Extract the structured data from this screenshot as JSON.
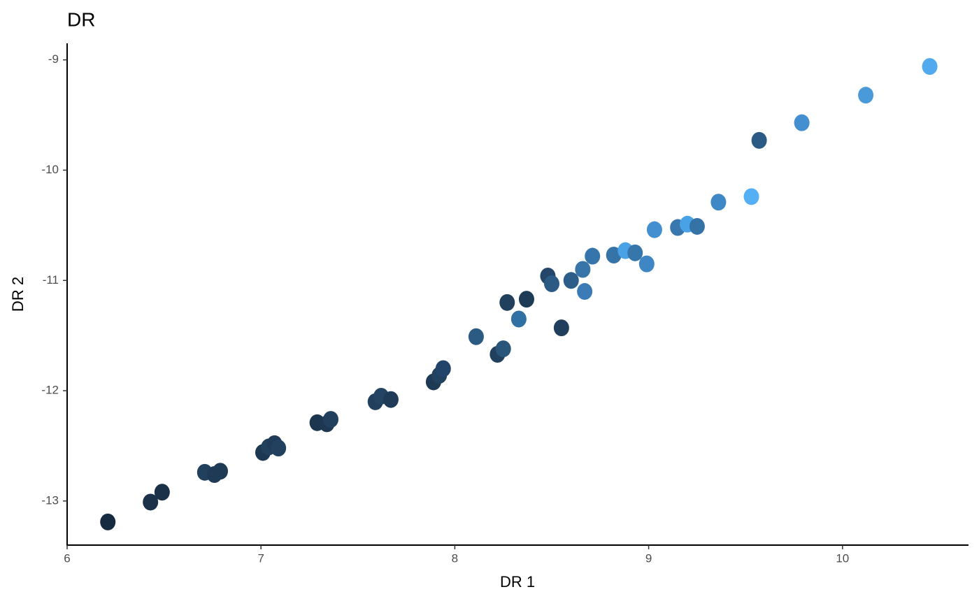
{
  "chart_data": {
    "type": "scatter",
    "title": "DR",
    "x_label": "DR 1",
    "y_label": "DR 2",
    "x": [
      6.21,
      6.43,
      6.49,
      6.71,
      6.76,
      6.79,
      7.01,
      7.04,
      7.07,
      7.09,
      7.29,
      7.34,
      7.36,
      7.59,
      7.62,
      7.67,
      7.89,
      7.92,
      7.94,
      8.11,
      8.22,
      8.25,
      8.27,
      8.33,
      8.37,
      8.48,
      8.5,
      8.55,
      8.6,
      8.66,
      8.67,
      8.71,
      8.82,
      8.88,
      8.93,
      8.99,
      9.03,
      9.15,
      9.2,
      9.25,
      9.36,
      9.53,
      9.57,
      9.79,
      10.12,
      10.45
    ],
    "values": [
      -13.19,
      -13.01,
      -12.92,
      -12.74,
      -12.76,
      -12.73,
      -12.56,
      -12.51,
      -12.48,
      -12.52,
      -12.29,
      -12.3,
      -12.26,
      -12.1,
      -12.05,
      -12.08,
      -11.92,
      -11.86,
      -11.8,
      -11.51,
      -11.67,
      -11.62,
      -11.2,
      -11.35,
      -11.17,
      -10.96,
      -11.03,
      -11.43,
      -11.0,
      -10.9,
      -11.1,
      -10.78,
      -10.77,
      -10.73,
      -10.75,
      -10.85,
      -10.54,
      -10.52,
      -10.49,
      -10.51,
      -10.29,
      -10.24,
      -9.73,
      -9.57,
      -9.32,
      -9.06
    ],
    "colors": [
      "#172b40",
      "#1b3149",
      "#1b3148",
      "#21405e",
      "#1f3a56",
      "#1f3a55",
      "#1e3852",
      "#21405d",
      "#1f3b57",
      "#22415f",
      "#1d3650",
      "#1e3853",
      "#21405e",
      "#20405d",
      "#234463",
      "#1f3b57",
      "#1e3a55",
      "#22415f",
      "#23446a",
      "#2b5a82",
      "#20405d",
      "#29557b",
      "#21405d",
      "#3170a3",
      "#1f3c57",
      "#244669",
      "#2b5b85",
      "#213f5c",
      "#2c5e89",
      "#3774a8",
      "#3b7cb6",
      "#3675ab",
      "#3573a8",
      "#4aa2e6",
      "#3776ab",
      "#3e86c4",
      "#438fcf",
      "#3978af",
      "#4aa2e6",
      "#3572a6",
      "#3f88c6",
      "#55aff5",
      "#2b5b85",
      "#448fd0",
      "#4a9ada",
      "#52aaee"
    ],
    "xlim": [
      6,
      10.65
    ],
    "ylim": [
      -13.4,
      -8.85
    ],
    "xticks": [
      6,
      7,
      8,
      9,
      10
    ],
    "yticks": [
      -9,
      -10,
      -11,
      -12,
      -13
    ]
  }
}
